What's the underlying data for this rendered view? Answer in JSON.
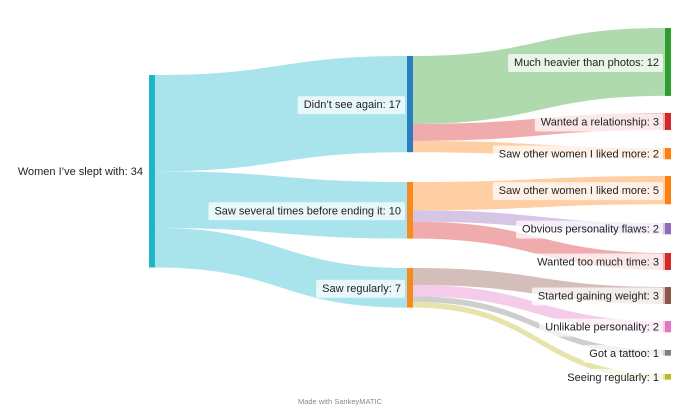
{
  "chart_data": {
    "type": "sankey",
    "unit": "",
    "nodes": [
      {
        "id": "root",
        "label": "Women I’ve slept with",
        "value": 34,
        "color": "#1fb5c9"
      },
      {
        "id": "nosee",
        "label": "Didn’t see again",
        "value": 17,
        "color": "#2a7fc1"
      },
      {
        "id": "several",
        "label": "Saw several times before ending it",
        "value": 10,
        "color": "#f58b1f"
      },
      {
        "id": "regular",
        "label": "Saw regularly",
        "value": 7,
        "color": "#f58b1f"
      },
      {
        "id": "heavier",
        "label": "Much heavier than photos",
        "value": 12,
        "color": "#2ca02c"
      },
      {
        "id": "relationship",
        "label": "Wanted a relationship",
        "value": 3,
        "color": "#d62728"
      },
      {
        "id": "other2",
        "label": "Saw other women I liked more",
        "value": 2,
        "color": "#ff7f0e"
      },
      {
        "id": "other5",
        "label": "Saw other women I liked more",
        "value": 5,
        "color": "#ff7f0e"
      },
      {
        "id": "flaws",
        "label": "Obvious personality flaws",
        "value": 2,
        "color": "#9467bd"
      },
      {
        "id": "toomuch",
        "label": "Wanted too much time",
        "value": 3,
        "color": "#d62728"
      },
      {
        "id": "weight",
        "label": "Started gaining weight",
        "value": 3,
        "color": "#8c564b"
      },
      {
        "id": "unlikable",
        "label": "Unlikable personality",
        "value": 2,
        "color": "#e377c2"
      },
      {
        "id": "tattoo",
        "label": "Got a tattoo",
        "value": 1,
        "color": "#7f7f7f"
      },
      {
        "id": "seeing",
        "label": "Seeing regularly",
        "value": 1,
        "color": "#bcbd22"
      }
    ],
    "links": [
      {
        "source": "root",
        "target": "nosee",
        "value": 17
      },
      {
        "source": "root",
        "target": "several",
        "value": 10
      },
      {
        "source": "root",
        "target": "regular",
        "value": 7
      },
      {
        "source": "nosee",
        "target": "heavier",
        "value": 12
      },
      {
        "source": "nosee",
        "target": "relationship",
        "value": 3
      },
      {
        "source": "nosee",
        "target": "other2",
        "value": 2
      },
      {
        "source": "several",
        "target": "other5",
        "value": 5
      },
      {
        "source": "several",
        "target": "flaws",
        "value": 2
      },
      {
        "source": "several",
        "target": "toomuch",
        "value": 3
      },
      {
        "source": "regular",
        "target": "weight",
        "value": 3
      },
      {
        "source": "regular",
        "target": "unlikable",
        "value": 2
      },
      {
        "source": "regular",
        "target": "tattoo",
        "value": 1
      },
      {
        "source": "regular",
        "target": "seeing",
        "value": 1
      }
    ]
  },
  "credit": "Made with SankeyMATIC"
}
